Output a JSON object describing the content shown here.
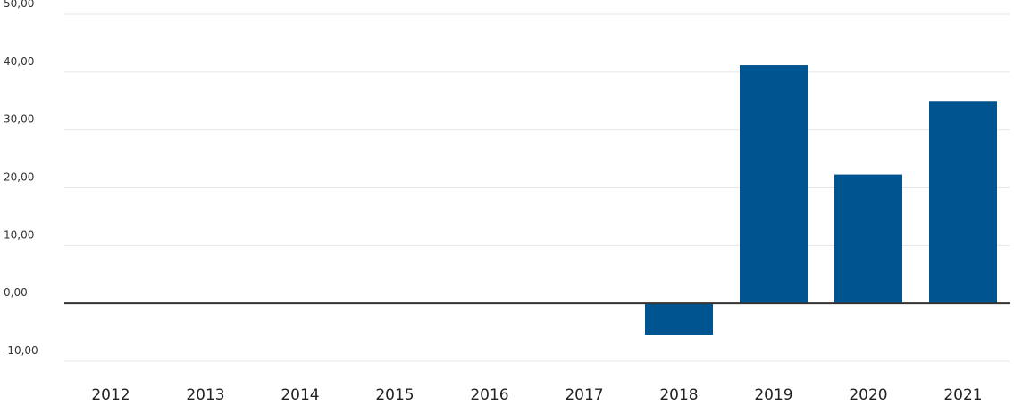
{
  "chart_data": {
    "type": "bar",
    "categories": [
      "2012",
      "2013",
      "2014",
      "2015",
      "2016",
      "2017",
      "2018",
      "2019",
      "2020",
      "2021"
    ],
    "series": [
      {
        "values": [
          null,
          null,
          null,
          null,
          null,
          null,
          -5.4,
          41.2,
          22.3,
          35.0
        ]
      }
    ],
    "ylim": [
      -10,
      50
    ],
    "yticks": [
      50,
      40,
      30,
      20,
      10,
      0,
      -10
    ],
    "ytick_labels": [
      "50,00",
      "40,00",
      "30,00",
      "20,00",
      "10,00",
      "0,00",
      "-10,00"
    ],
    "grid": true,
    "legend": "none",
    "bar_color": "#00548f",
    "title": "",
    "xlabel": "",
    "ylabel": ""
  }
}
